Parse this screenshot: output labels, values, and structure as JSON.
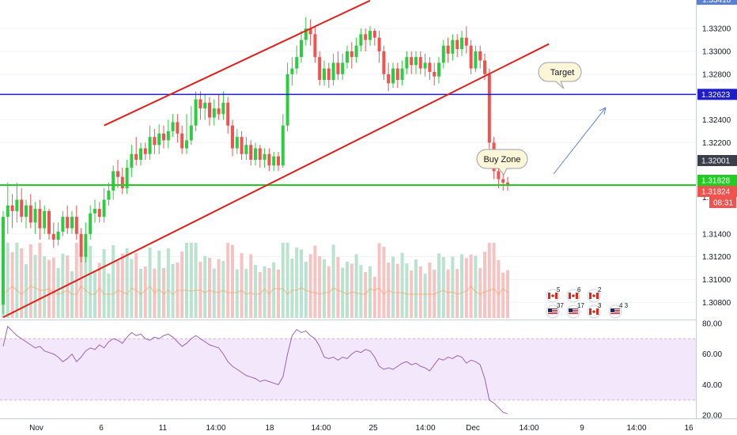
{
  "colors": {
    "up": "#26a69a",
    "upBody": "#2ecc40",
    "down": "#ef5350",
    "channel": "#e0201c",
    "blueLine": "#1e1ec8",
    "greenLine": "#22cc22",
    "rsiLine": "#9c5fb5",
    "rsiBand": "#f3e7fb",
    "volUp": "#b9e3cf",
    "volDown": "#f6c3c3",
    "volMA": "#f4a261",
    "grid": "#f0f3fa",
    "arrow": "#5b7fd1"
  },
  "price_axis": {
    "ticks": [
      "1.33200",
      "1.33000",
      "1.32800",
      "1.32400",
      "1.32200",
      "1.31400",
      "1.31200",
      "1.31000",
      "1.30800"
    ],
    "tick_values": [
      1.332,
      1.33,
      1.328,
      1.324,
      1.322,
      1.314,
      1.312,
      1.31,
      1.308
    ],
    "top_partial_label": "1.33418",
    "partial_label": "1.3"
  },
  "price_tags": [
    {
      "label": "1.32623",
      "value": 1.32623,
      "color": "#1e1ec8"
    },
    {
      "label": "1.32001",
      "value": 1.32001,
      "color": "#3a3f4b"
    },
    {
      "label": "1.31828",
      "value": 1.31828,
      "color": "#22cc22"
    },
    {
      "label": "1.31824",
      "value": 1.31824,
      "color": "#ef5350"
    },
    {
      "label": "08:31",
      "value": 1.3174,
      "color": "#ef5350"
    }
  ],
  "rsi_axis": {
    "ticks": [
      "80.00",
      "60.00",
      "40.00",
      "20.00"
    ],
    "tick_values": [
      80,
      60,
      40,
      20
    ]
  },
  "x_axis": {
    "labels": [
      "Nov",
      "6",
      "11",
      "14:00",
      "18",
      "14:00",
      "25",
      "14:00",
      "Dec",
      "14:00",
      "9",
      "14:00",
      "16"
    ]
  },
  "callouts": {
    "target": "Target",
    "buy_zone": "Buy Zone"
  },
  "events": [
    {
      "flag": "CA",
      "count": "5"
    },
    {
      "flag": "CA",
      "count": "6"
    },
    {
      "flag": "CA",
      "count": "2"
    },
    {
      "flag": "US",
      "count": "37"
    },
    {
      "flag": "US",
      "count": "17"
    },
    {
      "flag": "CA",
      "count": "3"
    },
    {
      "flag": "US",
      "count": "4 3"
    }
  ],
  "chart_data": {
    "type": "candlestick",
    "instrument_axis": "price",
    "ylim": [
      1.3065,
      1.3345
    ],
    "rsi_ylim": [
      18,
      82
    ],
    "horizontal_levels": {
      "resistance": 1.32623,
      "support": 1.31828
    },
    "channel": {
      "upper": [
        [
          22,
          1.3235
        ],
        [
          80,
          1.33445
        ]
      ],
      "lower": [
        [
          0,
          1.3067
        ],
        [
          119,
          1.33065
        ]
      ]
    },
    "rsi_band": [
      30,
      70
    ],
    "candles": [
      [
        1.3078,
        1.3155,
        1.307,
        1.316
      ],
      [
        1.3155,
        1.3165,
        1.314,
        1.3185
      ],
      [
        1.3165,
        1.316,
        1.3145,
        1.3175
      ],
      [
        1.316,
        1.317,
        1.315,
        1.3185
      ],
      [
        1.317,
        1.3155,
        1.315,
        1.318
      ],
      [
        1.3155,
        1.3165,
        1.3145,
        1.317
      ],
      [
        1.3165,
        1.315,
        1.3145,
        1.3175
      ],
      [
        1.315,
        1.3162,
        1.314,
        1.3168
      ],
      [
        1.3162,
        1.3145,
        1.3135,
        1.317
      ],
      [
        1.3145,
        1.316,
        1.314,
        1.3165
      ],
      [
        1.316,
        1.314,
        1.3135,
        1.3162
      ],
      [
        1.314,
        1.3135,
        1.3128,
        1.315
      ],
      [
        1.3135,
        1.3142,
        1.313,
        1.315
      ],
      [
        1.3142,
        1.3155,
        1.3138,
        1.316
      ],
      [
        1.3155,
        1.3145,
        1.314,
        1.3165
      ],
      [
        1.3145,
        1.3155,
        1.314,
        1.316
      ],
      [
        1.3155,
        1.314,
        1.3135,
        1.3165
      ],
      [
        1.314,
        1.312,
        1.3115,
        1.3145
      ],
      [
        1.312,
        1.314,
        1.3115,
        1.315
      ],
      [
        1.314,
        1.3158,
        1.3135,
        1.3165
      ],
      [
        1.3158,
        1.3162,
        1.315,
        1.317
      ],
      [
        1.3162,
        1.3155,
        1.315,
        1.3168
      ],
      [
        1.3155,
        1.317,
        1.315,
        1.318
      ],
      [
        1.317,
        1.3178,
        1.3165,
        1.3185
      ],
      [
        1.3178,
        1.3195,
        1.317,
        1.32
      ],
      [
        1.3195,
        1.319,
        1.318,
        1.3205
      ],
      [
        1.319,
        1.318,
        1.3175,
        1.3198
      ],
      [
        1.318,
        1.3198,
        1.3175,
        1.3205
      ],
      [
        1.3198,
        1.321,
        1.319,
        1.3218
      ],
      [
        1.321,
        1.3205,
        1.32,
        1.3225
      ],
      [
        1.3205,
        1.3215,
        1.32,
        1.322
      ],
      [
        1.3215,
        1.321,
        1.3205,
        1.322
      ],
      [
        1.321,
        1.3225,
        1.3205,
        1.3235
      ],
      [
        1.3225,
        1.3218,
        1.321,
        1.3232
      ],
      [
        1.3218,
        1.3228,
        1.321,
        1.3236
      ],
      [
        1.3228,
        1.3222,
        1.3215,
        1.3235
      ],
      [
        1.3222,
        1.323,
        1.3215,
        1.324
      ],
      [
        1.323,
        1.3238,
        1.3225,
        1.3245
      ],
      [
        1.3238,
        1.3228,
        1.322,
        1.3245
      ],
      [
        1.3228,
        1.3215,
        1.321,
        1.3235
      ],
      [
        1.3215,
        1.3222,
        1.321,
        1.3245
      ],
      [
        1.3222,
        1.3235,
        1.3218,
        1.3252
      ],
      [
        1.3235,
        1.3258,
        1.323,
        1.3265
      ],
      [
        1.3258,
        1.325,
        1.324,
        1.3265
      ],
      [
        1.325,
        1.3255,
        1.324,
        1.3262
      ],
      [
        1.3255,
        1.3242,
        1.3235,
        1.326
      ],
      [
        1.3242,
        1.325,
        1.3235,
        1.3258
      ],
      [
        1.325,
        1.3245,
        1.324,
        1.3262
      ],
      [
        1.3245,
        1.3255,
        1.324,
        1.3265
      ],
      [
        1.3255,
        1.3235,
        1.3228,
        1.326
      ],
      [
        1.3235,
        1.3215,
        1.3208,
        1.324
      ],
      [
        1.3215,
        1.3225,
        1.321,
        1.3232
      ],
      [
        1.3225,
        1.321,
        1.3205,
        1.323
      ],
      [
        1.321,
        1.3218,
        1.3205,
        1.3225
      ],
      [
        1.3218,
        1.3205,
        1.32,
        1.3222
      ],
      [
        1.3205,
        1.3215,
        1.32,
        1.322
      ],
      [
        1.3215,
        1.3205,
        1.3198,
        1.3218
      ],
      [
        1.3205,
        1.321,
        1.3198,
        1.3215
      ],
      [
        1.321,
        1.32,
        1.3195,
        1.3215
      ],
      [
        1.32,
        1.3208,
        1.3195,
        1.3212
      ],
      [
        1.3208,
        1.32,
        1.3195,
        1.3212
      ],
      [
        1.32,
        1.3235,
        1.3198,
        1.3245
      ],
      [
        1.3235,
        1.328,
        1.323,
        1.329
      ],
      [
        1.328,
        1.3285,
        1.327,
        1.3295
      ],
      [
        1.3285,
        1.3295,
        1.328,
        1.3305
      ],
      [
        1.3295,
        1.331,
        1.329,
        1.3318
      ],
      [
        1.331,
        1.332,
        1.3305,
        1.333
      ],
      [
        1.332,
        1.3315,
        1.3305,
        1.3328
      ],
      [
        1.3315,
        1.3295,
        1.329,
        1.3322
      ],
      [
        1.3295,
        1.3275,
        1.327,
        1.33
      ],
      [
        1.3275,
        1.3285,
        1.327,
        1.3292
      ],
      [
        1.3285,
        1.3275,
        1.3268,
        1.329
      ],
      [
        1.3275,
        1.329,
        1.327,
        1.3298
      ],
      [
        1.329,
        1.328,
        1.3275,
        1.33
      ],
      [
        1.328,
        1.329,
        1.3275,
        1.3298
      ],
      [
        1.329,
        1.33,
        1.3285,
        1.3305
      ],
      [
        1.33,
        1.3295,
        1.3285,
        1.3308
      ],
      [
        1.3295,
        1.3305,
        1.329,
        1.3312
      ],
      [
        1.3305,
        1.3315,
        1.33,
        1.332
      ],
      [
        1.3315,
        1.331,
        1.33,
        1.332
      ],
      [
        1.331,
        1.3318,
        1.3305,
        1.3322
      ],
      [
        1.3318,
        1.3312,
        1.3305,
        1.332
      ],
      [
        1.3312,
        1.33,
        1.329,
        1.3318
      ],
      [
        1.33,
        1.328,
        1.3275,
        1.3305
      ],
      [
        1.328,
        1.3272,
        1.3265,
        1.329
      ],
      [
        1.3272,
        1.3285,
        1.3268,
        1.329
      ],
      [
        1.3285,
        1.3275,
        1.3268,
        1.329
      ],
      [
        1.3275,
        1.3285,
        1.327,
        1.3292
      ],
      [
        1.3285,
        1.3295,
        1.328,
        1.33
      ],
      [
        1.3295,
        1.3288,
        1.328,
        1.33
      ],
      [
        1.3288,
        1.3295,
        1.328,
        1.33
      ],
      [
        1.3295,
        1.3285,
        1.328,
        1.33
      ],
      [
        1.3285,
        1.329,
        1.3278,
        1.3298
      ],
      [
        1.329,
        1.3282,
        1.3275,
        1.3295
      ],
      [
        1.3282,
        1.3278,
        1.327,
        1.329
      ],
      [
        1.3278,
        1.329,
        1.3272,
        1.3295
      ],
      [
        1.329,
        1.3305,
        1.3285,
        1.331
      ],
      [
        1.3305,
        1.3298,
        1.329,
        1.3312
      ],
      [
        1.3298,
        1.331,
        1.3292,
        1.3315
      ],
      [
        1.331,
        1.3302,
        1.3295,
        1.3315
      ],
      [
        1.3302,
        1.3312,
        1.3296,
        1.3318
      ],
      [
        1.3312,
        1.3305,
        1.3298,
        1.3322
      ],
      [
        1.3305,
        1.3285,
        1.328,
        1.331
      ],
      [
        1.3285,
        1.33,
        1.3282,
        1.3305
      ],
      [
        1.33,
        1.3292,
        1.3285,
        1.3305
      ],
      [
        1.3292,
        1.328,
        1.3275,
        1.3298
      ],
      [
        1.328,
        1.322,
        1.321,
        1.3285
      ],
      [
        1.322,
        1.3195,
        1.3188,
        1.3225
      ],
      [
        1.3195,
        1.3188,
        1.318,
        1.32
      ],
      [
        1.3188,
        1.3185,
        1.3178,
        1.3195
      ],
      [
        1.3185,
        1.3182,
        1.3178,
        1.319
      ]
    ],
    "rsi": [
      65,
      78,
      75,
      72,
      70,
      68,
      66,
      64,
      65,
      62,
      61,
      60,
      58,
      55,
      57,
      60,
      55,
      58,
      62,
      64,
      63,
      66,
      64,
      68,
      70,
      69,
      67,
      71,
      74,
      72,
      73,
      70,
      69,
      71,
      70,
      72,
      73,
      71,
      68,
      65,
      67,
      70,
      72,
      70,
      68,
      66,
      65,
      64,
      60,
      55,
      52,
      50,
      48,
      46,
      45,
      44,
      42,
      43,
      42,
      41,
      40,
      45,
      60,
      72,
      76,
      74,
      75,
      72,
      70,
      65,
      58,
      57,
      58,
      56,
      58,
      57,
      60,
      62,
      61,
      63,
      62,
      58,
      52,
      50,
      51,
      50,
      52,
      54,
      55,
      53,
      54,
      52,
      51,
      49,
      53,
      57,
      56,
      58,
      57,
      59,
      58,
      54,
      56,
      55,
      53,
      44,
      30,
      28,
      25,
      22,
      21
    ]
  }
}
